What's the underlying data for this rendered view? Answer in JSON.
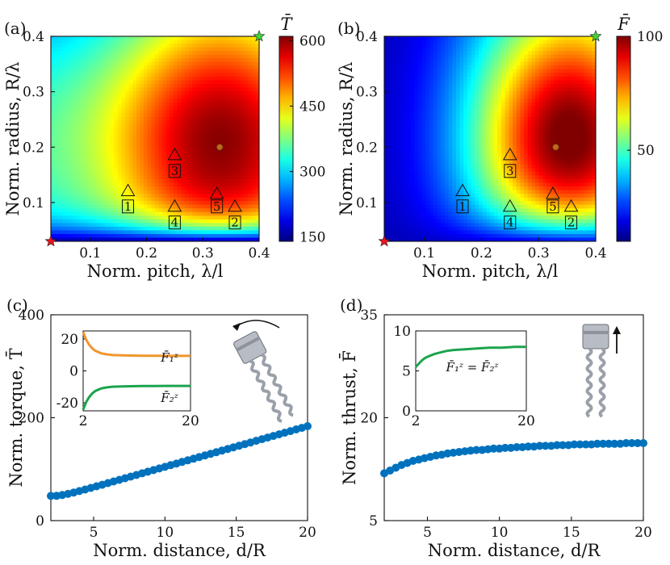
{
  "chart_data": [
    {
      "id": "a",
      "panel_label": "(a)",
      "type": "heatmap",
      "title": "",
      "xlabel": "Norm. pitch, λ/l",
      "ylabel": "Norm. radius, R/λ",
      "xlim": [
        0.03,
        0.4
      ],
      "ylim": [
        0.03,
        0.4
      ],
      "xticks": [
        "0.1",
        "0.2",
        "0.3",
        "0.4"
      ],
      "yticks": [
        "0.1",
        "0.2",
        "0.3",
        "0.4"
      ],
      "colorbar": {
        "label": "T̄",
        "range": [
          140,
          610
        ],
        "ticks": [
          "150",
          "300",
          "450",
          "600"
        ]
      },
      "optimum": {
        "x": 0.33,
        "y": 0.2
      },
      "stars": [
        {
          "color": "red",
          "x": 0.03,
          "y": 0.03
        },
        {
          "color": "green",
          "x": 0.4,
          "y": 0.4
        }
      ],
      "triangles": [
        {
          "x": 0.167,
          "y": 0.121
        },
        {
          "x": 0.25,
          "y": 0.186
        },
        {
          "x": 0.25,
          "y": 0.093
        },
        {
          "x": 0.325,
          "y": 0.116
        },
        {
          "x": 0.357,
          "y": 0.093
        }
      ],
      "boxes": [
        {
          "label": "1",
          "x": 0.167,
          "y": 0.093
        },
        {
          "label": "2",
          "x": 0.357,
          "y": 0.064
        },
        {
          "label": "3",
          "x": 0.25,
          "y": 0.157
        },
        {
          "label": "4",
          "x": 0.25,
          "y": 0.064
        },
        {
          "label": "5",
          "x": 0.325,
          "y": 0.093
        }
      ]
    },
    {
      "id": "b",
      "panel_label": "(b)",
      "type": "heatmap",
      "title": "",
      "xlabel": "Norm. pitch, λ/l",
      "ylabel": "Norm. radius, R/λ",
      "xlim": [
        0.03,
        0.4
      ],
      "ylim": [
        0.03,
        0.4
      ],
      "xticks": [
        "0.1",
        "0.2",
        "0.3",
        "0.4"
      ],
      "yticks": [
        "0.1",
        "0.2",
        "0.3",
        "0.4"
      ],
      "colorbar": {
        "label": "F̄",
        "range": [
          10,
          100
        ],
        "ticks": [
          "50",
          "100"
        ]
      },
      "optimum": {
        "x": 0.33,
        "y": 0.2
      },
      "stars": [
        {
          "color": "red",
          "x": 0.03,
          "y": 0.03
        },
        {
          "color": "green",
          "x": 0.4,
          "y": 0.4
        }
      ],
      "triangles": [
        {
          "x": 0.167,
          "y": 0.121
        },
        {
          "x": 0.25,
          "y": 0.186
        },
        {
          "x": 0.25,
          "y": 0.093
        },
        {
          "x": 0.325,
          "y": 0.116
        },
        {
          "x": 0.357,
          "y": 0.093
        }
      ],
      "boxes": [
        {
          "label": "1",
          "x": 0.167,
          "y": 0.093
        },
        {
          "label": "2",
          "x": 0.357,
          "y": 0.064
        },
        {
          "label": "3",
          "x": 0.25,
          "y": 0.157
        },
        {
          "label": "4",
          "x": 0.25,
          "y": 0.064
        },
        {
          "label": "5",
          "x": 0.325,
          "y": 0.093
        }
      ]
    },
    {
      "id": "c",
      "panel_label": "(c)",
      "type": "scatter",
      "title": "",
      "xlabel": "Norm. distance, d/R",
      "ylabel": "Norm. torque, T̄",
      "xlim": [
        2,
        20
      ],
      "ylim": [
        0,
        400
      ],
      "xticks": [
        "5",
        "10",
        "15",
        "20"
      ],
      "yticks": [
        "0",
        "200",
        "400"
      ],
      "x": [
        2.0,
        2.4,
        2.8,
        3.2,
        3.6,
        4.0,
        4.4,
        4.8,
        5.2,
        5.6,
        6.0,
        6.4,
        6.8,
        7.2,
        7.6,
        8.0,
        8.4,
        8.8,
        9.2,
        9.6,
        10.0,
        10.4,
        10.8,
        11.2,
        11.6,
        12.0,
        12.4,
        12.8,
        13.2,
        13.6,
        14.0,
        14.4,
        14.8,
        15.2,
        15.6,
        16.0,
        16.4,
        16.8,
        17.2,
        17.6,
        18.0,
        18.4,
        18.8,
        19.2,
        19.6,
        20.0
      ],
      "values": [
        48.0,
        48.1,
        49.7,
        51.9,
        54.6,
        57.4,
        60.4,
        63.5,
        66.6,
        69.7,
        72.9,
        76.0,
        79.2,
        82.4,
        85.5,
        88.7,
        91.9,
        95.0,
        98.2,
        101.3,
        104.5,
        107.7,
        110.8,
        114.0,
        117.1,
        120.3,
        123.5,
        126.6,
        129.8,
        132.9,
        136.1,
        139.3,
        142.4,
        145.6,
        148.7,
        151.9,
        155.1,
        158.2,
        161.4,
        164.5,
        167.7,
        170.9,
        174.0,
        177.2,
        180.3,
        183.5
      ],
      "inset": {
        "type": "line",
        "xlim": [
          2,
          20
        ],
        "ylim": [
          -25,
          25
        ],
        "xticks": [
          "2",
          "20"
        ],
        "yticks": [
          "-20",
          "0",
          "20"
        ],
        "series": [
          {
            "name": "F̄₁ᶻ",
            "color": "#f0962e",
            "x": [
              2,
              2.5,
              3,
              3.5,
              4,
              5,
              6,
              7,
              8,
              10,
              12,
              14,
              16,
              18,
              20
            ],
            "values": [
              24.2,
              19.6,
              16.4,
              14.2,
              12.7,
              11.0,
              10.3,
              9.9,
              9.8,
              9.6,
              9.5,
              9.5,
              9.4,
              9.4,
              9.4
            ]
          },
          {
            "name": "F̄₂ᶻ",
            "color": "#1ca44e",
            "x": [
              2,
              2.5,
              3,
              3.5,
              4,
              5,
              6,
              7,
              8,
              10,
              12,
              14,
              16,
              18,
              20
            ],
            "values": [
              -24.2,
              -19.6,
              -16.4,
              -14.2,
              -12.7,
              -11.0,
              -10.3,
              -9.9,
              -9.8,
              -9.6,
              -9.5,
              -9.5,
              -9.4,
              -9.4,
              -9.4
            ]
          }
        ]
      }
    },
    {
      "id": "d",
      "panel_label": "(d)",
      "type": "scatter",
      "title": "",
      "xlabel": "Norm. distance, d/R",
      "ylabel": "Norm. thrust, F̄",
      "xlim": [
        2,
        20
      ],
      "ylim": [
        5,
        35
      ],
      "xticks": [
        "5",
        "10",
        "15",
        "20"
      ],
      "yticks": [
        "5",
        "20",
        "35"
      ],
      "x": [
        2.0,
        2.4,
        2.8,
        3.2,
        3.6,
        4.0,
        4.4,
        4.8,
        5.2,
        5.6,
        6.0,
        6.4,
        6.8,
        7.2,
        7.6,
        8.0,
        8.4,
        8.8,
        9.2,
        9.6,
        10.0,
        10.4,
        10.8,
        11.2,
        11.6,
        12.0,
        12.4,
        12.8,
        13.2,
        13.6,
        14.0,
        14.4,
        14.8,
        15.2,
        15.6,
        16.0,
        16.4,
        16.8,
        17.2,
        17.6,
        18.0,
        18.4,
        18.8,
        19.2,
        19.6,
        20.0
      ],
      "values": [
        11.9,
        12.3,
        12.7,
        13.1,
        13.4,
        13.7,
        13.9,
        14.1,
        14.3,
        14.5,
        14.6,
        14.8,
        14.9,
        15.0,
        15.1,
        15.2,
        15.3,
        15.3,
        15.4,
        15.5,
        15.5,
        15.6,
        15.6,
        15.7,
        15.7,
        15.8,
        15.8,
        15.9,
        15.9,
        15.9,
        16.0,
        16.0,
        16.0,
        16.1,
        16.1,
        16.1,
        16.1,
        16.2,
        16.2,
        16.2,
        16.2,
        16.2,
        16.3,
        16.3,
        16.3,
        16.3
      ],
      "inset": {
        "type": "line",
        "xlim": [
          2,
          20
        ],
        "ylim": [
          0,
          10
        ],
        "xticks": [
          "2",
          "20"
        ],
        "yticks": [
          "0",
          "5",
          "10"
        ],
        "series": [
          {
            "name": "F̄₁ᶻ = F̄₂ᶻ",
            "color": "#1ca44e",
            "x": [
              2,
              2.5,
              3,
              3.5,
              4,
              5,
              6,
              7,
              8,
              10,
              12,
              14,
              16,
              18,
              20
            ],
            "values": [
              5.5,
              5.9,
              6.3,
              6.6,
              6.8,
              7.1,
              7.3,
              7.5,
              7.6,
              7.7,
              7.8,
              7.9,
              7.9,
              8.0,
              8.0
            ]
          }
        ]
      }
    }
  ]
}
